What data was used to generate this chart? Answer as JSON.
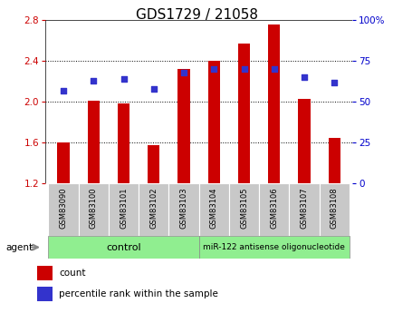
{
  "title": "GDS1729 / 21058",
  "categories": [
    "GSM83090",
    "GSM83100",
    "GSM83101",
    "GSM83102",
    "GSM83103",
    "GSM83104",
    "GSM83105",
    "GSM83106",
    "GSM83107",
    "GSM83108"
  ],
  "bar_values": [
    1.6,
    2.01,
    1.98,
    1.57,
    2.32,
    2.4,
    2.57,
    2.76,
    2.03,
    1.64
  ],
  "bar_bottom": 1.2,
  "percentile_values": [
    57,
    63,
    64,
    58,
    68,
    70,
    70,
    70,
    65,
    62
  ],
  "ylim_left": [
    1.2,
    2.8
  ],
  "ylim_right": [
    0,
    100
  ],
  "yticks_left": [
    1.2,
    1.6,
    2.0,
    2.4,
    2.8
  ],
  "yticks_right": [
    0,
    25,
    50,
    75,
    100
  ],
  "ytick_labels_right": [
    "0",
    "25",
    "50",
    "75",
    "100%"
  ],
  "bar_color": "#cc0000",
  "dot_color": "#3333cc",
  "grid_color": "#000000",
  "control_label": "control",
  "treatment_label": "miR-122 antisense oligonucleotide",
  "agent_label": "agent",
  "legend_count": "count",
  "legend_percentile": "percentile rank within the sample",
  "title_fontsize": 11,
  "tick_label_color_left": "#cc0000",
  "tick_label_color_right": "#0000cc",
  "group_bg_color": "#90ee90",
  "xtick_bg_color": "#c8c8c8",
  "bar_width": 0.4
}
